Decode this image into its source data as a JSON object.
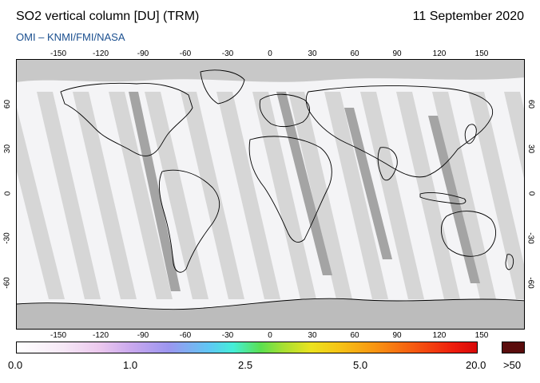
{
  "header": {
    "title": "SO2 vertical column [DU] (TRM)",
    "date": "11 September 2020",
    "source": "OMI  –  KNMI/FMI/NASA"
  },
  "axes": {
    "lon_ticks": [
      "-150",
      "-120",
      "-90",
      "-60",
      "-30",
      "0",
      "30",
      "60",
      "90",
      "120",
      "150"
    ],
    "lat_ticks": [
      "60",
      "30",
      "0",
      "-30",
      "-60"
    ]
  },
  "colorbar": {
    "labels": [
      "0.0",
      "1.0",
      "2.5",
      "5.0",
      "20.0"
    ],
    "over_label": ">50",
    "over_color": "#5a0c0c"
  },
  "colors": {
    "swath_light": "#d6d6d6",
    "swath_dark": "#a4a4a4",
    "map_bg": "#f4f4f6",
    "coast": "#000000",
    "subtitle": "#1a4f8f"
  }
}
